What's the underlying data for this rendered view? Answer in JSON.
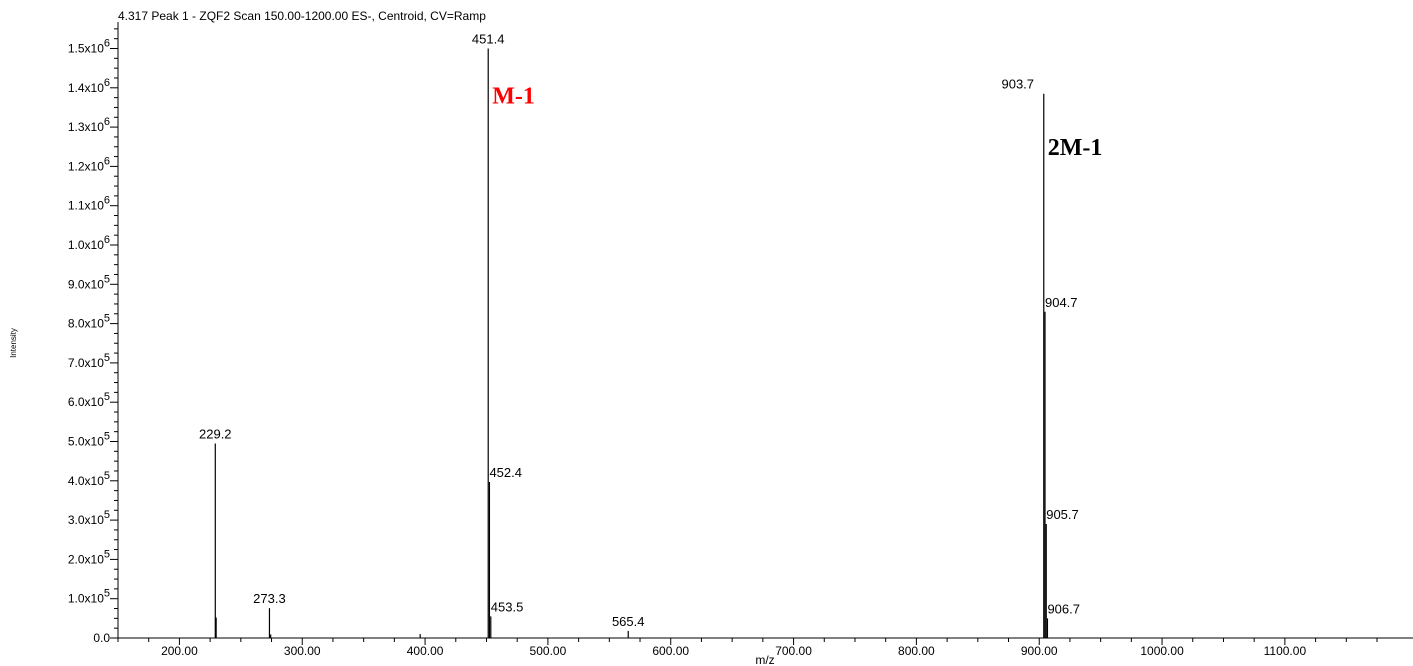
{
  "chart_data": {
    "type": "bar",
    "title": "4.317 Peak 1 - ZQF2 Scan 150.00-1200.00 ES-, Centroid, CV=Ramp",
    "xlabel": "m/z",
    "ylabel": "Intensity",
    "xlim": [
      150,
      1190
    ],
    "ylim": [
      0,
      1550000
    ],
    "x_ticks": [
      {
        "value": 200,
        "label": "200.00"
      },
      {
        "value": 300,
        "label": "300.00"
      },
      {
        "value": 400,
        "label": "400.00"
      },
      {
        "value": 500,
        "label": "500.00"
      },
      {
        "value": 600,
        "label": "600.00"
      },
      {
        "value": 700,
        "label": "700.00"
      },
      {
        "value": 800,
        "label": "800.00"
      },
      {
        "value": 900,
        "label": "900.00"
      },
      {
        "value": 1000,
        "label": "1000.00"
      },
      {
        "value": 1100,
        "label": "1100.00"
      }
    ],
    "y_ticks": [
      {
        "value": 0,
        "mant": "0.0",
        "exp": ""
      },
      {
        "value": 100000,
        "mant": "1.0x10",
        "exp": "5"
      },
      {
        "value": 200000,
        "mant": "2.0x10",
        "exp": "5"
      },
      {
        "value": 300000,
        "mant": "3.0x10",
        "exp": "5"
      },
      {
        "value": 400000,
        "mant": "4.0x10",
        "exp": "5"
      },
      {
        "value": 500000,
        "mant": "5.0x10",
        "exp": "5"
      },
      {
        "value": 600000,
        "mant": "6.0x10",
        "exp": "5"
      },
      {
        "value": 700000,
        "mant": "7.0x10",
        "exp": "5"
      },
      {
        "value": 800000,
        "mant": "8.0x10",
        "exp": "5"
      },
      {
        "value": 900000,
        "mant": "9.0x10",
        "exp": "5"
      },
      {
        "value": 1000000,
        "mant": "1.0x10",
        "exp": "6"
      },
      {
        "value": 1100000,
        "mant": "1.1x10",
        "exp": "6"
      },
      {
        "value": 1200000,
        "mant": "1.2x10",
        "exp": "6"
      },
      {
        "value": 1300000,
        "mant": "1.3x10",
        "exp": "6"
      },
      {
        "value": 1400000,
        "mant": "1.4x10",
        "exp": "6"
      },
      {
        "value": 1500000,
        "mant": "1.5x10",
        "exp": "6"
      }
    ],
    "peaks": [
      {
        "mz": 229.2,
        "intensity": 495000,
        "label": "229.2"
      },
      {
        "mz": 229.9,
        "intensity": 52000,
        "label": ""
      },
      {
        "mz": 273.3,
        "intensity": 76000,
        "label": "273.3"
      },
      {
        "mz": 274.3,
        "intensity": 9000,
        "label": ""
      },
      {
        "mz": 396.0,
        "intensity": 10000,
        "label": ""
      },
      {
        "mz": 451.4,
        "intensity": 1500000,
        "label": "451.4"
      },
      {
        "mz": 452.4,
        "intensity": 397000,
        "label": "452.4"
      },
      {
        "mz": 453.5,
        "intensity": 55000,
        "label": "453.5"
      },
      {
        "mz": 565.4,
        "intensity": 18000,
        "label": "565.4"
      },
      {
        "mz": 903.7,
        "intensity": 1385000,
        "label": "903.7"
      },
      {
        "mz": 904.7,
        "intensity": 830000,
        "label": "904.7"
      },
      {
        "mz": 905.7,
        "intensity": 290000,
        "label": "905.7"
      },
      {
        "mz": 906.7,
        "intensity": 50000,
        "label": "906.7"
      }
    ],
    "annotations": [
      {
        "text": "M-1",
        "color": "#ff0000",
        "mz": 451.4,
        "intensity": 1380000
      },
      {
        "text": "2M-1",
        "color": "#000000",
        "mz": 903.7,
        "intensity": 1250000
      }
    ],
    "grid": false
  }
}
